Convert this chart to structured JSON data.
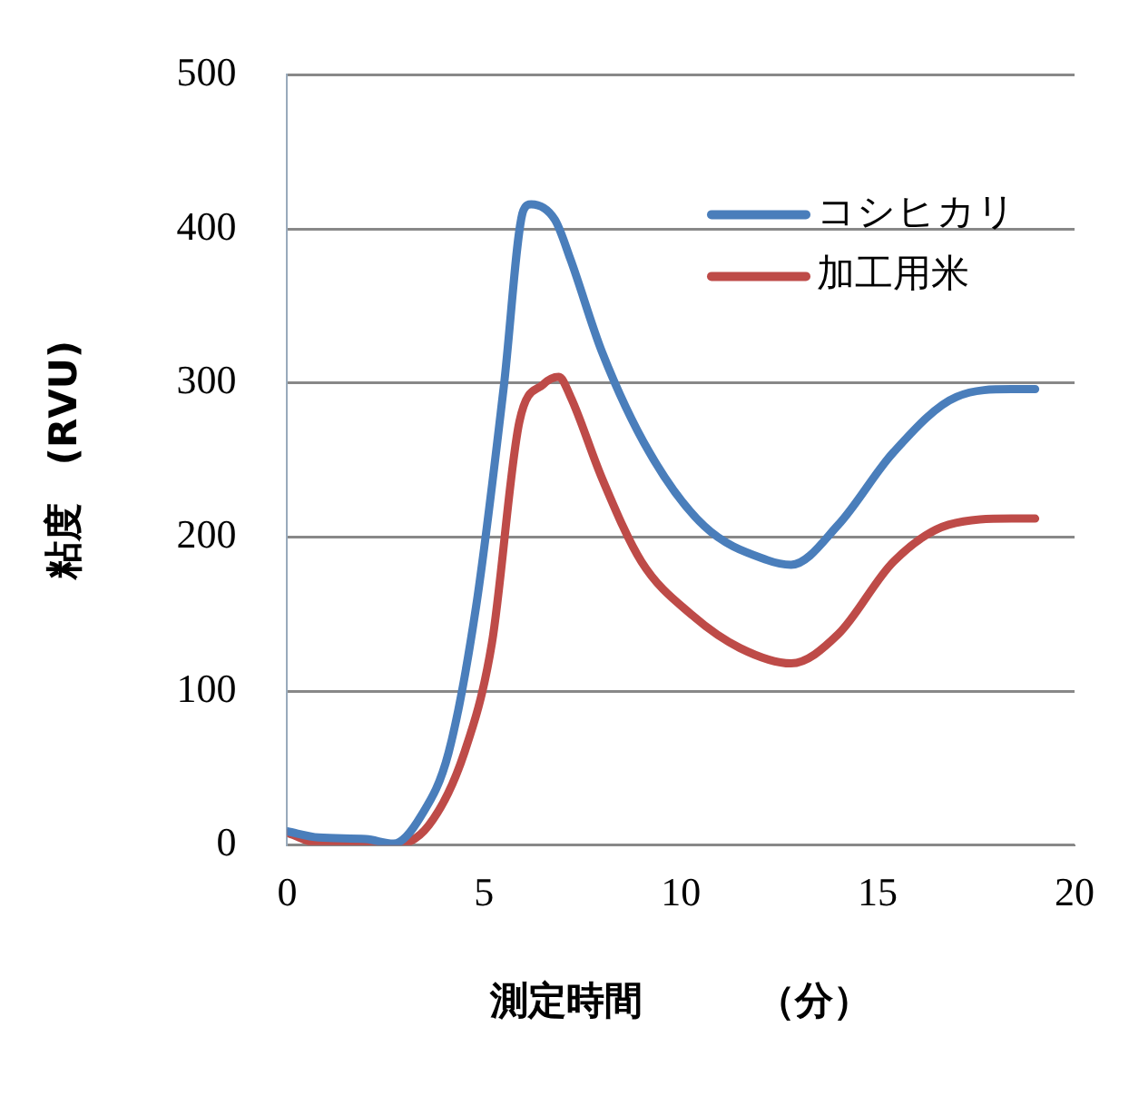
{
  "chart_data": {
    "type": "line",
    "xlabel": "測定時間　　　（分）",
    "ylabel": "粘度　(RVU)",
    "xlim": [
      0,
      20
    ],
    "xticks": [
      0,
      5,
      10,
      15,
      20
    ],
    "ylim": [
      0,
      500
    ],
    "yticks": [
      0,
      100,
      200,
      300,
      400,
      500
    ],
    "grid": "y",
    "legend": "top right",
    "marker": "none",
    "line_style": "solid",
    "series": [
      {
        "name": "コシヒカリ",
        "color": "#4a7ebb",
        "x": [
          0,
          0.8,
          2,
          2.7,
          3.4,
          4.1,
          4.8,
          5.5,
          6,
          6.2,
          6.8,
          7.2,
          8,
          9.2,
          10.6,
          12.2,
          12.8,
          14,
          15.4,
          17,
          18.4,
          19
        ],
        "values": [
          9,
          5,
          4,
          1,
          19,
          60,
          155,
          297,
          412,
          416,
          406,
          380,
          320,
          255,
          207,
          185,
          182,
          208,
          255,
          291,
          296,
          296
        ]
      },
      {
        "name": "加工用米",
        "color": "#be4b48",
        "x": [
          0,
          1,
          2.7,
          3.6,
          4.5,
          5.2,
          5.9,
          6.5,
          6.9,
          7.2,
          8,
          9,
          10.3,
          11.5,
          12.8,
          14,
          15.4,
          16.8,
          18.4,
          19
        ],
        "values": [
          8,
          0,
          0,
          13,
          60,
          131,
          275,
          299,
          304,
          291,
          238,
          184,
          149,
          128,
          118,
          137,
          184,
          208,
          212,
          212
        ]
      }
    ]
  }
}
